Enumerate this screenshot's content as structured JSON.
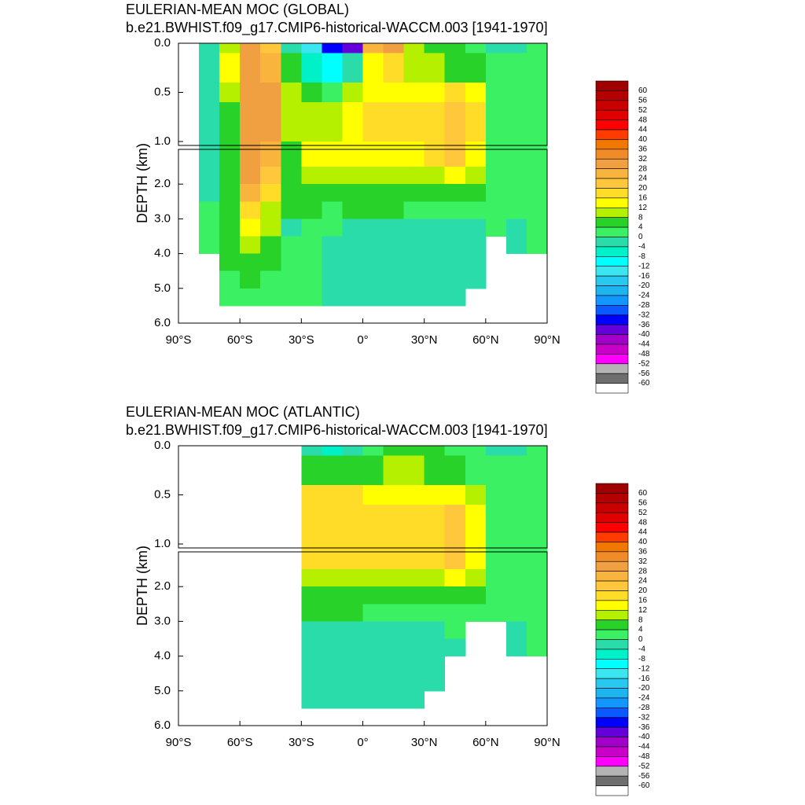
{
  "chart_data": [
    {
      "type": "contour",
      "title": "EULERIAN-MEAN MOC (GLOBAL)",
      "subtitle": "b.e21.BWHIST.f09_g17.CMIP6-historical-WACCM.003 [1941-1970]",
      "ylabel": "DEPTH (km)",
      "xlim": [
        -90,
        90
      ],
      "ylim": [
        0,
        6
      ],
      "ybreak": 1,
      "xticks": [
        {
          "value": -90,
          "label": "90°S"
        },
        {
          "value": -60,
          "label": "60°S"
        },
        {
          "value": -30,
          "label": "30°S"
        },
        {
          "value": 0,
          "label": "0°"
        },
        {
          "value": 30,
          "label": "30°N"
        },
        {
          "value": 60,
          "label": "60°N"
        },
        {
          "value": 90,
          "label": "90°N"
        }
      ],
      "yticks": [
        {
          "value": 0,
          "label": "0.0"
        },
        {
          "value": 0.5,
          "label": "0.5"
        },
        {
          "value": 1,
          "label": "1.0"
        },
        {
          "value": 2,
          "label": "2.0"
        },
        {
          "value": 3,
          "label": "3.0"
        },
        {
          "value": 4,
          "label": "4.0"
        },
        {
          "value": 5,
          "label": "5.0"
        },
        {
          "value": 6,
          "label": "6.0"
        }
      ],
      "x": [
        -85,
        -75,
        -65,
        -55,
        -45,
        -35,
        -25,
        -15,
        -5,
        5,
        15,
        25,
        35,
        45,
        55,
        65,
        75,
        85
      ],
      "depth_edges": [
        0,
        0.1,
        0.4,
        0.6,
        1,
        1.5,
        2,
        2.5,
        3,
        3.5,
        4,
        4.5,
        5,
        5.5,
        6
      ],
      "z": [
        [
          null,
          -2,
          10,
          30,
          20,
          -4,
          -16,
          -36,
          -40,
          26,
          28,
          10,
          6,
          6,
          2,
          -2,
          -2,
          2
        ],
        [
          null,
          -2,
          12,
          30,
          26,
          4,
          -8,
          -12,
          -4,
          14,
          18,
          10,
          8,
          6,
          4,
          2,
          2,
          2
        ],
        [
          null,
          -2,
          8,
          30,
          28,
          8,
          4,
          2,
          10,
          14,
          14,
          14,
          14,
          18,
          14,
          2,
          2,
          2
        ],
        [
          null,
          -2,
          6,
          30,
          28,
          8,
          8,
          8,
          14,
          18,
          18,
          18,
          18,
          22,
          18,
          2,
          2,
          2
        ],
        [
          null,
          -2,
          4,
          30,
          26,
          6,
          12,
          14,
          14,
          14,
          14,
          14,
          18,
          22,
          14,
          2,
          2,
          2
        ],
        [
          null,
          -2,
          4,
          28,
          22,
          4,
          8,
          8,
          8,
          10,
          10,
          10,
          10,
          14,
          10,
          2,
          2,
          2
        ],
        [
          null,
          -2,
          4,
          24,
          16,
          4,
          4,
          6,
          6,
          6,
          6,
          6,
          6,
          6,
          6,
          2,
          2,
          2
        ],
        [
          null,
          2,
          4,
          18,
          10,
          4,
          4,
          2,
          4,
          4,
          4,
          2,
          2,
          2,
          2,
          2,
          2,
          2
        ],
        [
          null,
          2,
          4,
          12,
          8,
          -2,
          2,
          2,
          -2,
          -2,
          -2,
          -2,
          -2,
          -2,
          -2,
          2,
          -2,
          2
        ],
        [
          null,
          2,
          4,
          8,
          4,
          2,
          2,
          -2,
          -2,
          -2,
          -2,
          -2,
          -2,
          -2,
          -2,
          null,
          -2,
          2
        ],
        [
          null,
          null,
          4,
          4,
          4,
          2,
          2,
          -2,
          -2,
          -2,
          -2,
          -2,
          -2,
          -2,
          -2,
          null,
          null,
          null
        ],
        [
          null,
          null,
          2,
          4,
          2,
          2,
          2,
          -2,
          -2,
          -2,
          -2,
          -2,
          -2,
          -2,
          -2,
          null,
          null,
          null
        ],
        [
          null,
          null,
          2,
          2,
          2,
          2,
          2,
          -2,
          -2,
          -2,
          -2,
          -2,
          -2,
          -2,
          null,
          null,
          null,
          null
        ],
        [
          null,
          null,
          null,
          null,
          null,
          null,
          null,
          null,
          null,
          null,
          null,
          null,
          null,
          null,
          null,
          null,
          null,
          null
        ]
      ],
      "colorbar": {
        "levels": [
          60,
          56,
          52,
          48,
          44,
          40,
          36,
          32,
          28,
          24,
          20,
          16,
          12,
          8,
          4,
          0,
          -4,
          -8,
          -12,
          -16,
          -20,
          -24,
          -28,
          -32,
          -36,
          -40,
          -44,
          -48,
          -52,
          -56,
          -60
        ],
        "colors": [
          "#a00000",
          "#b40000",
          "#c80000",
          "#e00000",
          "#ff0000",
          "#ff3c00",
          "#f07800",
          "#f08c28",
          "#f0a040",
          "#f8b43c",
          "#ffc83c",
          "#ffdc28",
          "#ffff00",
          "#b4f000",
          "#28d228",
          "#3cf064",
          "#2adcaa",
          "#00f0c8",
          "#00ffff",
          "#3ce6f0",
          "#28c8f0",
          "#1eb4f0",
          "#1496ff",
          "#0a5aff",
          "#0000ff",
          "#6400dc",
          "#a000c8",
          "#c800c8",
          "#ff00ff",
          "#b4b4b4",
          "#6e6e6e",
          "#ffffff"
        ]
      }
    },
    {
      "type": "contour",
      "title": "EULERIAN-MEAN MOC (ATLANTIC)",
      "subtitle": "b.e21.BWHIST.f09_g17.CMIP6-historical-WACCM.003 [1941-1970]",
      "ylabel": "DEPTH (km)",
      "xlim": [
        -90,
        90
      ],
      "ylim": [
        0,
        6
      ],
      "ybreak": 1,
      "xticks": [
        {
          "value": -90,
          "label": "90°S"
        },
        {
          "value": -60,
          "label": "60°S"
        },
        {
          "value": -30,
          "label": "30°S"
        },
        {
          "value": 0,
          "label": "0°"
        },
        {
          "value": 30,
          "label": "30°N"
        },
        {
          "value": 60,
          "label": "60°N"
        },
        {
          "value": 90,
          "label": "90°N"
        }
      ],
      "yticks": [
        {
          "value": 0,
          "label": "0.0"
        },
        {
          "value": 0.5,
          "label": "0.5"
        },
        {
          "value": 1,
          "label": "1.0"
        },
        {
          "value": 2,
          "label": "2.0"
        },
        {
          "value": 3,
          "label": "3.0"
        },
        {
          "value": 4,
          "label": "4.0"
        },
        {
          "value": 5,
          "label": "5.0"
        },
        {
          "value": 6,
          "label": "6.0"
        }
      ],
      "x": [
        -85,
        -75,
        -65,
        -55,
        -45,
        -35,
        -25,
        -15,
        -5,
        5,
        15,
        25,
        35,
        45,
        55,
        65,
        75,
        85
      ],
      "depth_edges": [
        0,
        0.1,
        0.4,
        0.6,
        1,
        1.5,
        2,
        2.5,
        3,
        3.5,
        4,
        4.5,
        5,
        5.5,
        6
      ],
      "z": [
        [
          null,
          null,
          null,
          null,
          null,
          null,
          -2,
          -6,
          -4,
          2,
          4,
          4,
          4,
          2,
          2,
          -2,
          -2,
          2
        ],
        [
          null,
          null,
          null,
          null,
          null,
          null,
          4,
          4,
          4,
          6,
          8,
          8,
          6,
          4,
          2,
          2,
          2,
          2
        ],
        [
          null,
          null,
          null,
          null,
          null,
          null,
          16,
          16,
          16,
          14,
          14,
          14,
          14,
          14,
          8,
          2,
          2,
          2
        ],
        [
          null,
          null,
          null,
          null,
          null,
          null,
          18,
          18,
          18,
          18,
          18,
          18,
          18,
          22,
          14,
          2,
          2,
          2
        ],
        [
          null,
          null,
          null,
          null,
          null,
          null,
          16,
          16,
          16,
          16,
          16,
          16,
          18,
          22,
          14,
          2,
          2,
          2
        ],
        [
          null,
          null,
          null,
          null,
          null,
          null,
          10,
          10,
          10,
          10,
          10,
          10,
          10,
          12,
          10,
          2,
          2,
          2
        ],
        [
          null,
          null,
          null,
          null,
          null,
          null,
          6,
          6,
          6,
          6,
          6,
          6,
          6,
          6,
          6,
          2,
          2,
          2
        ],
        [
          null,
          null,
          null,
          null,
          null,
          null,
          4,
          4,
          4,
          2,
          2,
          2,
          2,
          2,
          2,
          2,
          2,
          2
        ],
        [
          null,
          null,
          null,
          null,
          null,
          null,
          -2,
          -2,
          -2,
          -2,
          -2,
          -2,
          -2,
          2,
          null,
          null,
          -2,
          2
        ],
        [
          null,
          null,
          null,
          null,
          null,
          null,
          -2,
          -2,
          -2,
          -2,
          -2,
          -2,
          -2,
          -2,
          null,
          null,
          -2,
          2
        ],
        [
          null,
          null,
          null,
          null,
          null,
          null,
          -2,
          -2,
          -2,
          -2,
          -2,
          -2,
          -2,
          null,
          null,
          null,
          null,
          null
        ],
        [
          null,
          null,
          null,
          null,
          null,
          null,
          -2,
          -2,
          -2,
          -2,
          -2,
          -2,
          -2,
          null,
          null,
          null,
          null,
          null
        ],
        [
          null,
          null,
          null,
          null,
          null,
          null,
          -2,
          -2,
          -2,
          -2,
          -2,
          -2,
          null,
          null,
          null,
          null,
          null,
          null
        ],
        [
          null,
          null,
          null,
          null,
          null,
          null,
          null,
          null,
          null,
          null,
          null,
          null,
          null,
          null,
          null,
          null,
          null,
          null
        ]
      ],
      "colorbar": {
        "levels": [
          60,
          56,
          52,
          48,
          44,
          40,
          36,
          32,
          28,
          24,
          20,
          16,
          12,
          8,
          4,
          0,
          -4,
          -8,
          -12,
          -16,
          -20,
          -24,
          -28,
          -32,
          -36,
          -40,
          -44,
          -48,
          -52,
          -56,
          -60
        ],
        "colors": [
          "#a00000",
          "#b40000",
          "#c80000",
          "#e00000",
          "#ff0000",
          "#ff3c00",
          "#f07800",
          "#f08c28",
          "#f0a040",
          "#f8b43c",
          "#ffc83c",
          "#ffdc28",
          "#ffff00",
          "#b4f000",
          "#28d228",
          "#3cf064",
          "#2adcaa",
          "#00f0c8",
          "#00ffff",
          "#3ce6f0",
          "#28c8f0",
          "#1eb4f0",
          "#1496ff",
          "#0a5aff",
          "#0000ff",
          "#6400dc",
          "#a000c8",
          "#c800c8",
          "#ff00ff",
          "#b4b4b4",
          "#6e6e6e",
          "#ffffff"
        ]
      }
    }
  ]
}
